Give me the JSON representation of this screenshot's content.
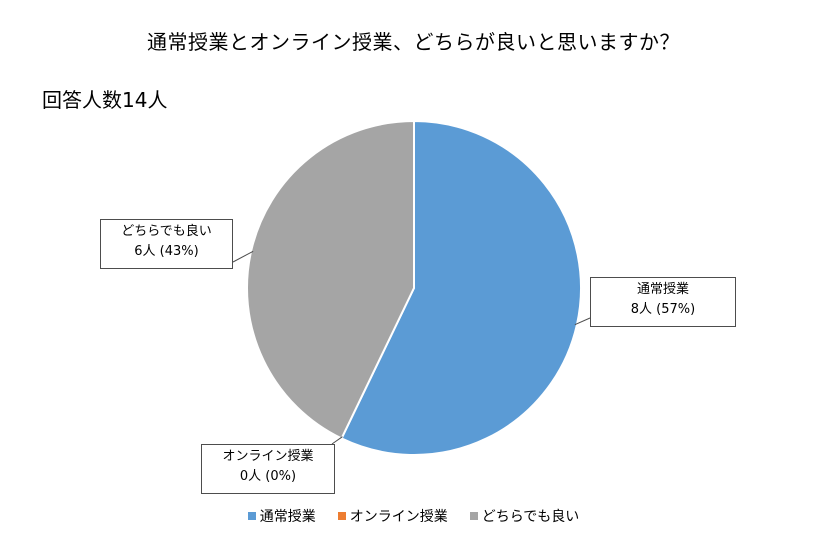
{
  "chart_data": {
    "type": "pie",
    "title": "通常授業とオンライン授業、どちらが良いと思いますか？",
    "subtitle": "回答人数14人",
    "slices": [
      {
        "name": "通常授業",
        "value": 8,
        "percent": "57%",
        "label_line1": "通常授業",
        "label_line2": "8人 (57%)",
        "color": "#5b9bd5"
      },
      {
        "name": "オンライン授業",
        "value": 0,
        "percent": "0%",
        "label_line1": "オンライン授業",
        "label_line2": "0人 (0%)",
        "color": "#ed7d31"
      },
      {
        "name": "どちらでも良い",
        "value": 6,
        "percent": "43%",
        "label_line1": "どちらでも良い",
        "label_line2": "6人 (43%)",
        "color": "#a5a5a5"
      }
    ],
    "legend_position": "bottom"
  }
}
